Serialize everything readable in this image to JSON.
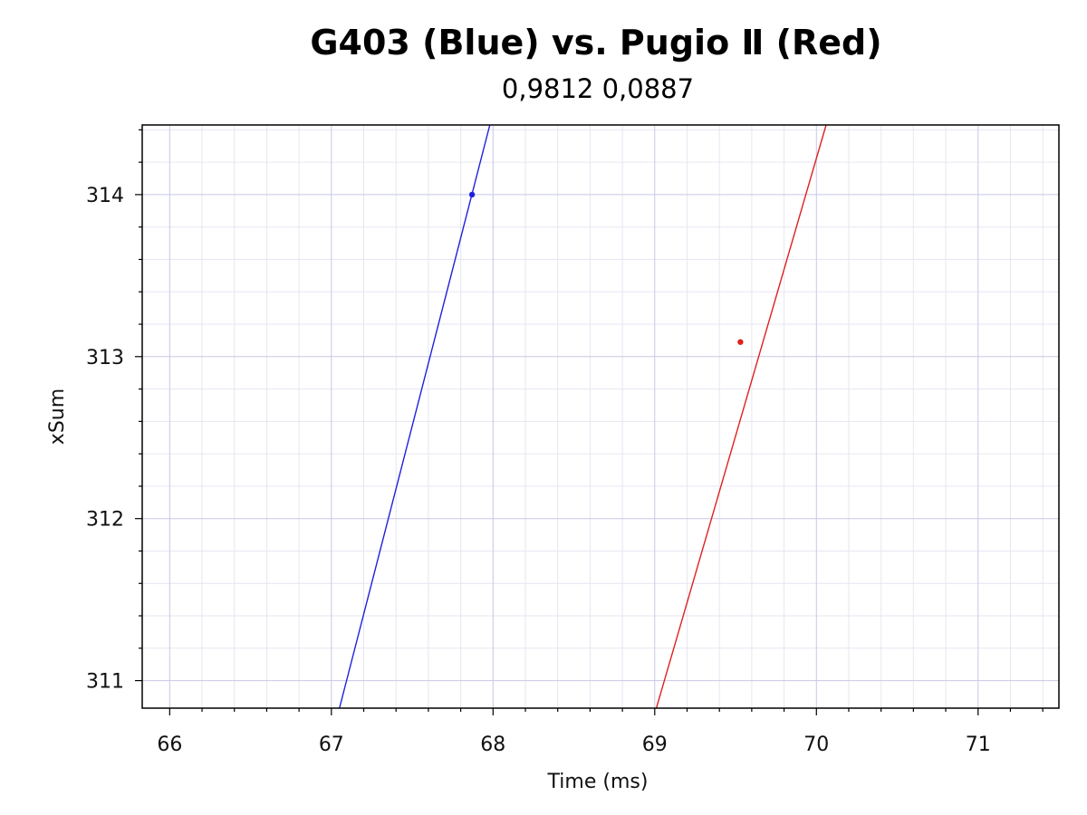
{
  "chart_data": {
    "type": "scatter",
    "title": "G403 (Blue) vs. Pugio Ⅱ (Red)",
    "subtitle": "0,9812 0,0887",
    "xlabel": "Time (ms)",
    "ylabel": "xSum",
    "xlim": [
      65.83,
      71.5
    ],
    "ylim": [
      310.83,
      314.43
    ],
    "x_ticks": [
      66,
      67,
      68,
      69,
      70,
      71
    ],
    "y_ticks": [
      311,
      312,
      313,
      314
    ],
    "grid": true,
    "series": [
      {
        "color": "#2020dd",
        "points": [
          {
            "x": 67.87,
            "y": 314.0
          }
        ],
        "fit_line": [
          {
            "x": 67.05,
            "y": 310.83
          },
          {
            "x": 67.98,
            "y": 314.43
          }
        ]
      },
      {
        "color": "#e02020",
        "points": [
          {
            "x": 69.53,
            "y": 313.09
          }
        ],
        "fit_line": [
          {
            "x": 69.01,
            "y": 310.83
          },
          {
            "x": 70.06,
            "y": 314.43
          }
        ]
      }
    ]
  }
}
